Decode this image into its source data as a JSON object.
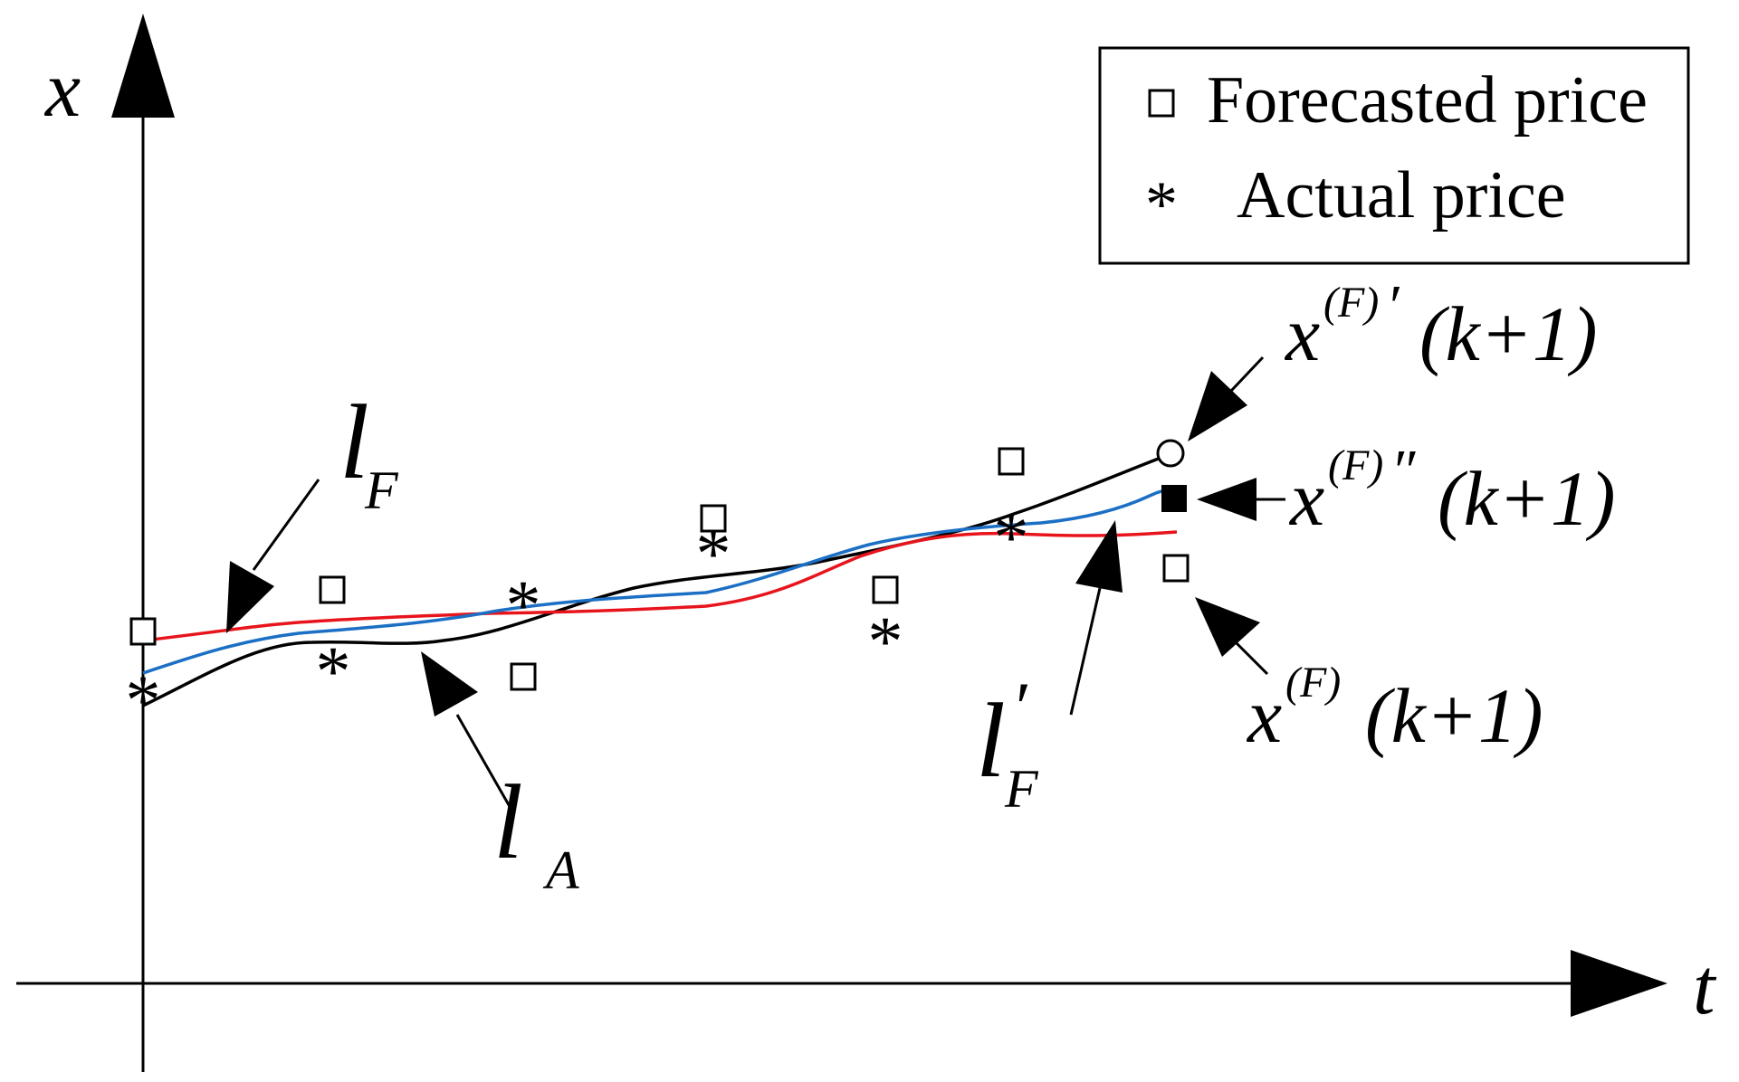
{
  "axes": {
    "x_label": "t",
    "y_label": "x"
  },
  "legend": {
    "items": [
      {
        "symbol": "square-icon",
        "label": "Forecasted price"
      },
      {
        "symbol": "asterisk-icon",
        "label": "Actual price"
      }
    ]
  },
  "points": {
    "forecasted": [
      {
        "t": 0,
        "x": 3.2
      },
      {
        "t": 1,
        "x": 3.6
      },
      {
        "t": 2,
        "x": 2.7
      },
      {
        "t": 3,
        "x": 4.3
      },
      {
        "t": 4,
        "x": 3.6
      },
      {
        "t": 5,
        "x": 4.8
      }
    ],
    "actual": [
      {
        "t": 0,
        "x": 2.6
      },
      {
        "t": 1,
        "x": 2.8
      },
      {
        "t": 2,
        "x": 3.4
      },
      {
        "t": 3,
        "x": 3.9
      },
      {
        "t": 4,
        "x": 3.1
      },
      {
        "t": 5,
        "x": 4.0
      }
    ],
    "next_step": {
      "x_F_prime": {
        "t": 6,
        "x": 4.9
      },
      "x_F_double_prime": {
        "t": 6,
        "x": 4.5
      },
      "x_F": {
        "t": 6,
        "x": 3.8
      }
    }
  },
  "curves": {
    "l_A": {
      "color": "#000000"
    },
    "l_F": {
      "color": "#e8141c"
    },
    "l_F_prime": {
      "color": "#1b6fc4"
    }
  },
  "annotations": {
    "l_F": {
      "main": "l",
      "sub": "F"
    },
    "l_A": {
      "main": "l",
      "sub": "A"
    },
    "l_F_prime": {
      "main": "l",
      "prime": "′",
      "sub": "F"
    },
    "x_F_prime": {
      "var": "x",
      "sup": "(F)",
      "prime": "′",
      "arg": "(k+1)"
    },
    "x_F_double_prime": {
      "var": "x",
      "sup": "(F)",
      "prime": "″",
      "arg": "(k+1)"
    },
    "x_F": {
      "var": "x",
      "sup": "(F)",
      "arg": "(k+1)"
    }
  }
}
